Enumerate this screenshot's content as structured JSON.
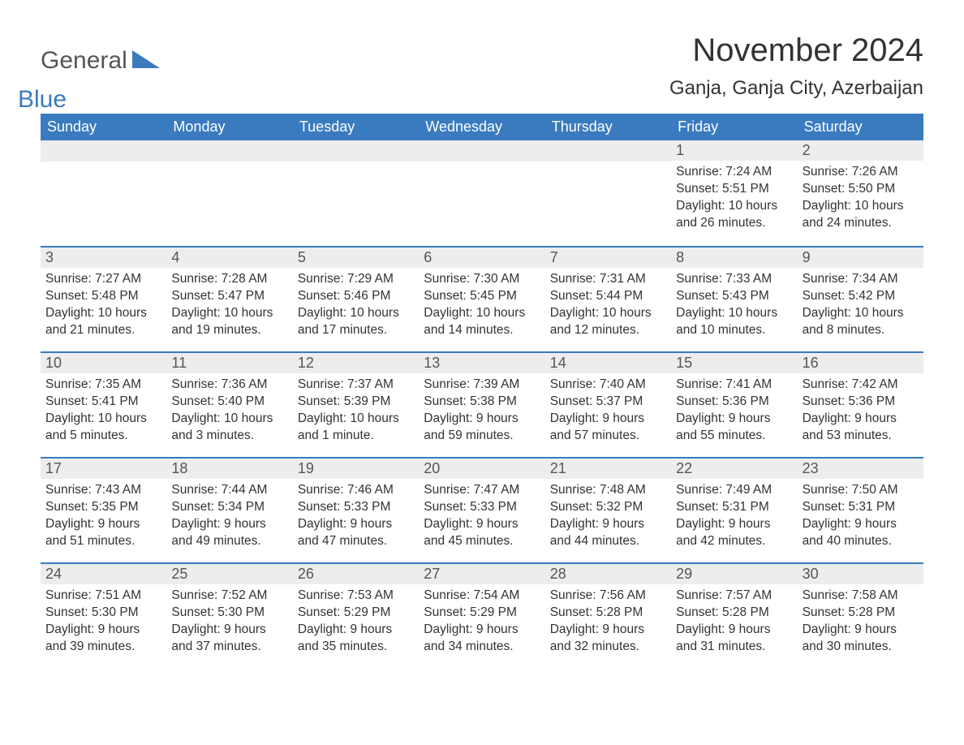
{
  "logo": {
    "part1": "General",
    "part2": "Blue"
  },
  "title": "November 2024",
  "location": "Ganja, Ganja City, Azerbaijan",
  "colors": {
    "header_bg": "#3a7bbf",
    "header_text": "#ffffff",
    "daynum_bg": "#ededed",
    "text": "#333333",
    "logo_gray": "#555555",
    "logo_blue": "#3a7bbf",
    "row_border": "#3a7bbf",
    "page_bg": "#ffffff"
  },
  "layout": {
    "columns": 7,
    "rows": 5,
    "week_start": "Sunday",
    "fontsize_title": 40,
    "fontsize_location": 24,
    "fontsize_weekday": 18,
    "fontsize_daynum": 18,
    "fontsize_details": 15.5
  },
  "weekdays": [
    "Sunday",
    "Monday",
    "Tuesday",
    "Wednesday",
    "Thursday",
    "Friday",
    "Saturday"
  ],
  "weeks": [
    [
      {
        "day": "",
        "sunrise": "",
        "sunset": "",
        "daylight": ""
      },
      {
        "day": "",
        "sunrise": "",
        "sunset": "",
        "daylight": ""
      },
      {
        "day": "",
        "sunrise": "",
        "sunset": "",
        "daylight": ""
      },
      {
        "day": "",
        "sunrise": "",
        "sunset": "",
        "daylight": ""
      },
      {
        "day": "",
        "sunrise": "",
        "sunset": "",
        "daylight": ""
      },
      {
        "day": "1",
        "sunrise": "Sunrise: 7:24 AM",
        "sunset": "Sunset: 5:51 PM",
        "daylight": "Daylight: 10 hours and 26 minutes."
      },
      {
        "day": "2",
        "sunrise": "Sunrise: 7:26 AM",
        "sunset": "Sunset: 5:50 PM",
        "daylight": "Daylight: 10 hours and 24 minutes."
      }
    ],
    [
      {
        "day": "3",
        "sunrise": "Sunrise: 7:27 AM",
        "sunset": "Sunset: 5:48 PM",
        "daylight": "Daylight: 10 hours and 21 minutes."
      },
      {
        "day": "4",
        "sunrise": "Sunrise: 7:28 AM",
        "sunset": "Sunset: 5:47 PM",
        "daylight": "Daylight: 10 hours and 19 minutes."
      },
      {
        "day": "5",
        "sunrise": "Sunrise: 7:29 AM",
        "sunset": "Sunset: 5:46 PM",
        "daylight": "Daylight: 10 hours and 17 minutes."
      },
      {
        "day": "6",
        "sunrise": "Sunrise: 7:30 AM",
        "sunset": "Sunset: 5:45 PM",
        "daylight": "Daylight: 10 hours and 14 minutes."
      },
      {
        "day": "7",
        "sunrise": "Sunrise: 7:31 AM",
        "sunset": "Sunset: 5:44 PM",
        "daylight": "Daylight: 10 hours and 12 minutes."
      },
      {
        "day": "8",
        "sunrise": "Sunrise: 7:33 AM",
        "sunset": "Sunset: 5:43 PM",
        "daylight": "Daylight: 10 hours and 10 minutes."
      },
      {
        "day": "9",
        "sunrise": "Sunrise: 7:34 AM",
        "sunset": "Sunset: 5:42 PM",
        "daylight": "Daylight: 10 hours and 8 minutes."
      }
    ],
    [
      {
        "day": "10",
        "sunrise": "Sunrise: 7:35 AM",
        "sunset": "Sunset: 5:41 PM",
        "daylight": "Daylight: 10 hours and 5 minutes."
      },
      {
        "day": "11",
        "sunrise": "Sunrise: 7:36 AM",
        "sunset": "Sunset: 5:40 PM",
        "daylight": "Daylight: 10 hours and 3 minutes."
      },
      {
        "day": "12",
        "sunrise": "Sunrise: 7:37 AM",
        "sunset": "Sunset: 5:39 PM",
        "daylight": "Daylight: 10 hours and 1 minute."
      },
      {
        "day": "13",
        "sunrise": "Sunrise: 7:39 AM",
        "sunset": "Sunset: 5:38 PM",
        "daylight": "Daylight: 9 hours and 59 minutes."
      },
      {
        "day": "14",
        "sunrise": "Sunrise: 7:40 AM",
        "sunset": "Sunset: 5:37 PM",
        "daylight": "Daylight: 9 hours and 57 minutes."
      },
      {
        "day": "15",
        "sunrise": "Sunrise: 7:41 AM",
        "sunset": "Sunset: 5:36 PM",
        "daylight": "Daylight: 9 hours and 55 minutes."
      },
      {
        "day": "16",
        "sunrise": "Sunrise: 7:42 AM",
        "sunset": "Sunset: 5:36 PM",
        "daylight": "Daylight: 9 hours and 53 minutes."
      }
    ],
    [
      {
        "day": "17",
        "sunrise": "Sunrise: 7:43 AM",
        "sunset": "Sunset: 5:35 PM",
        "daylight": "Daylight: 9 hours and 51 minutes."
      },
      {
        "day": "18",
        "sunrise": "Sunrise: 7:44 AM",
        "sunset": "Sunset: 5:34 PM",
        "daylight": "Daylight: 9 hours and 49 minutes."
      },
      {
        "day": "19",
        "sunrise": "Sunrise: 7:46 AM",
        "sunset": "Sunset: 5:33 PM",
        "daylight": "Daylight: 9 hours and 47 minutes."
      },
      {
        "day": "20",
        "sunrise": "Sunrise: 7:47 AM",
        "sunset": "Sunset: 5:33 PM",
        "daylight": "Daylight: 9 hours and 45 minutes."
      },
      {
        "day": "21",
        "sunrise": "Sunrise: 7:48 AM",
        "sunset": "Sunset: 5:32 PM",
        "daylight": "Daylight: 9 hours and 44 minutes."
      },
      {
        "day": "22",
        "sunrise": "Sunrise: 7:49 AM",
        "sunset": "Sunset: 5:31 PM",
        "daylight": "Daylight: 9 hours and 42 minutes."
      },
      {
        "day": "23",
        "sunrise": "Sunrise: 7:50 AM",
        "sunset": "Sunset: 5:31 PM",
        "daylight": "Daylight: 9 hours and 40 minutes."
      }
    ],
    [
      {
        "day": "24",
        "sunrise": "Sunrise: 7:51 AM",
        "sunset": "Sunset: 5:30 PM",
        "daylight": "Daylight: 9 hours and 39 minutes."
      },
      {
        "day": "25",
        "sunrise": "Sunrise: 7:52 AM",
        "sunset": "Sunset: 5:30 PM",
        "daylight": "Daylight: 9 hours and 37 minutes."
      },
      {
        "day": "26",
        "sunrise": "Sunrise: 7:53 AM",
        "sunset": "Sunset: 5:29 PM",
        "daylight": "Daylight: 9 hours and 35 minutes."
      },
      {
        "day": "27",
        "sunrise": "Sunrise: 7:54 AM",
        "sunset": "Sunset: 5:29 PM",
        "daylight": "Daylight: 9 hours and 34 minutes."
      },
      {
        "day": "28",
        "sunrise": "Sunrise: 7:56 AM",
        "sunset": "Sunset: 5:28 PM",
        "daylight": "Daylight: 9 hours and 32 minutes."
      },
      {
        "day": "29",
        "sunrise": "Sunrise: 7:57 AM",
        "sunset": "Sunset: 5:28 PM",
        "daylight": "Daylight: 9 hours and 31 minutes."
      },
      {
        "day": "30",
        "sunrise": "Sunrise: 7:58 AM",
        "sunset": "Sunset: 5:28 PM",
        "daylight": "Daylight: 9 hours and 30 minutes."
      }
    ]
  ]
}
